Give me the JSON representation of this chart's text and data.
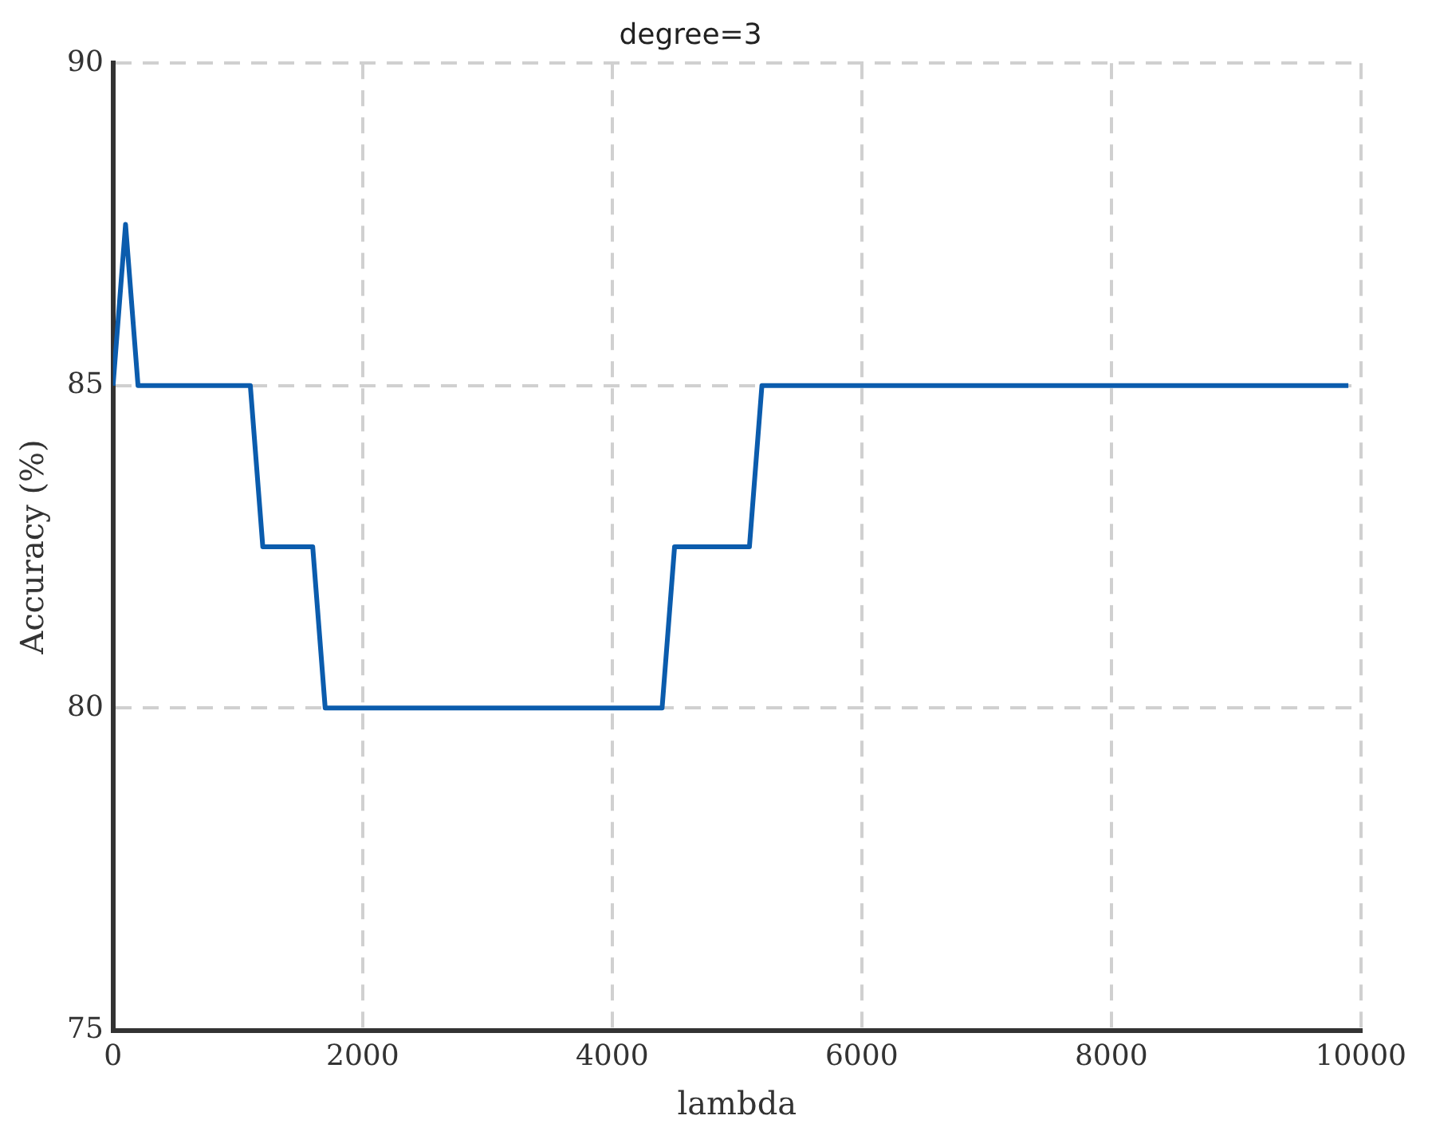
{
  "chart_data": {
    "type": "line",
    "title": "degree=3",
    "xlabel": "lambda",
    "ylabel": "Accuracy (%)",
    "x": [
      0,
      100,
      200,
      1100,
      1200,
      1600,
      1700,
      4400,
      4500,
      5100,
      5200,
      9900
    ],
    "series": [
      {
        "color": "#0b5cad",
        "values": [
          85,
          87.5,
          85,
          85,
          82.5,
          82.5,
          80,
          80,
          82.5,
          82.5,
          85,
          85
        ]
      }
    ],
    "xlim": [
      0,
      10000
    ],
    "xticks": [
      0,
      2000,
      4000,
      6000,
      8000,
      10000
    ],
    "ylim": [
      75,
      90
    ],
    "yticks": [
      75,
      80,
      85,
      90
    ],
    "grid": true,
    "legend": false,
    "marker": "none",
    "line_style": "solid"
  }
}
